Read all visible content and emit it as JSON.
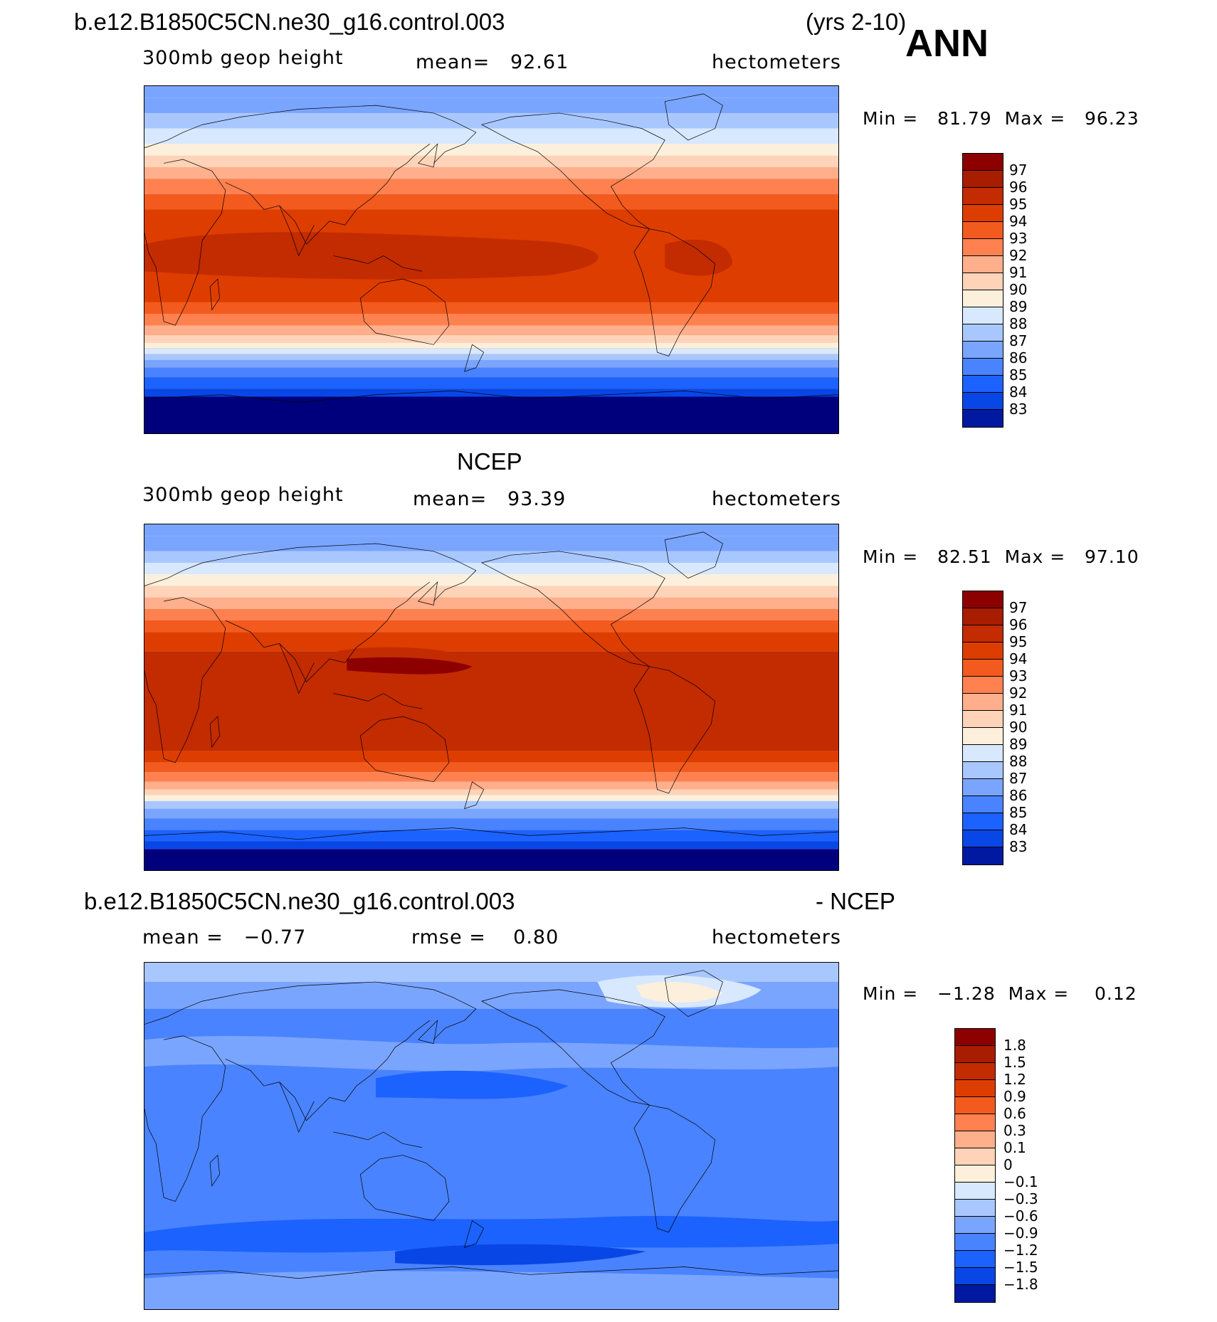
{
  "header": {
    "case_name": "b.e12.B1850C5CN.ne30_g16.control.003",
    "years": "(yrs 2-10)",
    "season": "ANN"
  },
  "colors": {
    "scale": [
      "#00007d",
      "#0019a0",
      "#0031c8",
      "#0847e6",
      "#1c62ff",
      "#4a83ff",
      "#7aa5ff",
      "#a9c7ff",
      "#d7e8ff",
      "#fcf0dc",
      "#ffd3b8",
      "#ffaf8c",
      "#ff8150",
      "#f25a1e",
      "#de3d00",
      "#c32b00",
      "#a81c00",
      "#8c0000"
    ]
  },
  "chart_data": [
    {
      "type": "heatmap",
      "id": "model",
      "field": "300mb geop height",
      "units": "hectometers",
      "mean_label": "mean=",
      "mean": "92.61",
      "min_label": "Min =",
      "min": "81.79",
      "max_label": "Max =",
      "max": "96.23",
      "levels": [
        "97",
        "96",
        "95",
        "94",
        "93",
        "92",
        "91",
        "90",
        "89",
        "88",
        "87",
        "86",
        "85",
        "84",
        "83"
      ]
    },
    {
      "type": "heatmap",
      "id": "obs",
      "title": "NCEP",
      "field": "300mb geop height",
      "units": "hectometers",
      "mean_label": "mean=",
      "mean": "93.39",
      "min_label": "Min =",
      "min": "82.51",
      "max_label": "Max =",
      "max": "97.10",
      "levels": [
        "97",
        "96",
        "95",
        "94",
        "93",
        "92",
        "91",
        "90",
        "89",
        "88",
        "87",
        "86",
        "85",
        "84",
        "83"
      ]
    },
    {
      "type": "heatmap",
      "id": "diff",
      "title_left": "b.e12.B1850C5CN.ne30_g16.control.003",
      "title_right": "- NCEP",
      "units": "hectometers",
      "mean_label": "mean =",
      "mean": "−0.77",
      "rmse_label": "rmse =",
      "rmse": "0.80",
      "min_label": "Min =",
      "min": "−1.28",
      "max_label": "Max =",
      "max": "0.12",
      "levels": [
        "1.8",
        "1.5",
        "1.2",
        "0.9",
        "0.6",
        "0.3",
        "0.1",
        "0",
        "−0.1",
        "−0.3",
        "−0.6",
        "−0.9",
        "−1.2",
        "−1.5",
        "−1.8"
      ]
    }
  ]
}
